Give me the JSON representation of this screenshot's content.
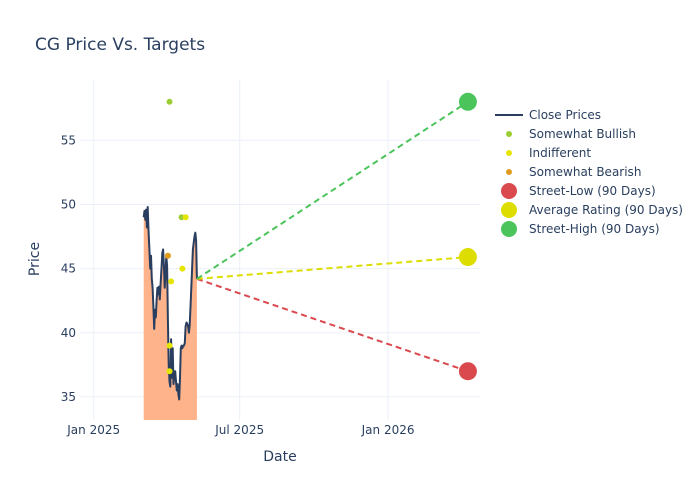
{
  "chart_data": {
    "type": "line",
    "title": "CG Price Vs. Targets",
    "xlabel": "Date",
    "ylabel": "Price",
    "x_range": [
      "2024-12-15",
      "2026-04-25"
    ],
    "y_range": [
      33.2,
      59.7
    ],
    "x_ticks": [
      {
        "date": "2025-01-01",
        "label": "Jan 2025"
      },
      {
        "date": "2025-07-01",
        "label": "Jul 2025"
      },
      {
        "date": "2026-01-01",
        "label": "Jan 2026"
      }
    ],
    "y_ticks": [
      35,
      40,
      45,
      50,
      55
    ],
    "grid": true,
    "legend_position": "top-right",
    "colors": {
      "close": "#2a3f5f",
      "fill": "#ffb38a",
      "somewhat_bullish": "#9acd32",
      "indifferent": "#e5e500",
      "somewhat_bearish": "#e09b20",
      "street_low": "#d9494d",
      "average": "#dddd00",
      "street_high": "#4cc45c"
    },
    "close_prices": [
      {
        "date": "2025-03-04",
        "value": 49.0
      },
      {
        "date": "2025-03-05",
        "value": 49.5
      },
      {
        "date": "2025-03-06",
        "value": 48.8
      },
      {
        "date": "2025-03-07",
        "value": 49.6
      },
      {
        "date": "2025-03-08",
        "value": 48.2
      },
      {
        "date": "2025-03-09",
        "value": 49.8
      },
      {
        "date": "2025-03-10",
        "value": 48.0
      },
      {
        "date": "2025-03-11",
        "value": 46.5
      },
      {
        "date": "2025-03-12",
        "value": 45.0
      },
      {
        "date": "2025-03-13",
        "value": 46.0
      },
      {
        "date": "2025-03-14",
        "value": 44.2
      },
      {
        "date": "2025-03-15",
        "value": 43.5
      },
      {
        "date": "2025-03-16",
        "value": 42.0
      },
      {
        "date": "2025-03-17",
        "value": 40.3
      },
      {
        "date": "2025-03-18",
        "value": 41.8
      },
      {
        "date": "2025-03-19",
        "value": 41.2
      },
      {
        "date": "2025-03-20",
        "value": 42.5
      },
      {
        "date": "2025-03-21",
        "value": 43.5
      },
      {
        "date": "2025-03-22",
        "value": 43.0
      },
      {
        "date": "2025-03-23",
        "value": 43.6
      },
      {
        "date": "2025-03-24",
        "value": 42.6
      },
      {
        "date": "2025-03-25",
        "value": 43.8
      },
      {
        "date": "2025-03-26",
        "value": 45.0
      },
      {
        "date": "2025-03-27",
        "value": 46.2
      },
      {
        "date": "2025-03-28",
        "value": 46.5
      },
      {
        "date": "2025-03-29",
        "value": 45.2
      },
      {
        "date": "2025-03-30",
        "value": 43.5
      },
      {
        "date": "2025-03-31",
        "value": 44.5
      },
      {
        "date": "2025-04-01",
        "value": 46.0
      },
      {
        "date": "2025-04-02",
        "value": 45.2
      },
      {
        "date": "2025-04-03",
        "value": 41.0
      },
      {
        "date": "2025-04-04",
        "value": 37.5
      },
      {
        "date": "2025-04-05",
        "value": 36.2
      },
      {
        "date": "2025-04-06",
        "value": 35.8
      },
      {
        "date": "2025-04-07",
        "value": 39.5
      },
      {
        "date": "2025-04-08",
        "value": 36.5
      },
      {
        "date": "2025-04-09",
        "value": 38.8
      },
      {
        "date": "2025-04-10",
        "value": 36.0
      },
      {
        "date": "2025-04-11",
        "value": 36.8
      },
      {
        "date": "2025-04-12",
        "value": 37.0
      },
      {
        "date": "2025-04-13",
        "value": 36.2
      },
      {
        "date": "2025-04-14",
        "value": 35.5
      },
      {
        "date": "2025-04-15",
        "value": 36.0
      },
      {
        "date": "2025-04-16",
        "value": 35.2
      },
      {
        "date": "2025-04-17",
        "value": 34.8
      },
      {
        "date": "2025-04-18",
        "value": 36.5
      },
      {
        "date": "2025-04-19",
        "value": 38.8
      },
      {
        "date": "2025-04-20",
        "value": 39.0
      },
      {
        "date": "2025-04-21",
        "value": 38.8
      },
      {
        "date": "2025-04-22",
        "value": 39.0
      },
      {
        "date": "2025-04-23",
        "value": 39.0
      },
      {
        "date": "2025-04-24",
        "value": 39.2
      },
      {
        "date": "2025-04-25",
        "value": 40.5
      },
      {
        "date": "2025-04-26",
        "value": 40.8
      },
      {
        "date": "2025-04-27",
        "value": 40.7
      },
      {
        "date": "2025-04-28",
        "value": 40.5
      },
      {
        "date": "2025-04-29",
        "value": 40.0
      },
      {
        "date": "2025-04-30",
        "value": 40.6
      },
      {
        "date": "2025-05-01",
        "value": 42.0
      },
      {
        "date": "2025-05-02",
        "value": 43.5
      },
      {
        "date": "2025-05-03",
        "value": 45.0
      },
      {
        "date": "2025-05-04",
        "value": 46.5
      },
      {
        "date": "2025-05-05",
        "value": 47.0
      },
      {
        "date": "2025-05-06",
        "value": 47.5
      },
      {
        "date": "2025-05-07",
        "value": 47.8
      },
      {
        "date": "2025-05-08",
        "value": 47.2
      },
      {
        "date": "2025-05-09",
        "value": 44.2
      }
    ],
    "series": [
      {
        "name": "Somewhat Bullish",
        "points": [
          {
            "date": "2025-04-05",
            "value": 58.0
          },
          {
            "date": "2025-04-20",
            "value": 49.0
          }
        ]
      },
      {
        "name": "Indifferent",
        "points": [
          {
            "date": "2025-04-07",
            "value": 44.0
          },
          {
            "date": "2025-04-03",
            "value": 46.0
          },
          {
            "date": "2025-04-05",
            "value": 39.0
          },
          {
            "date": "2025-04-05",
            "value": 37.0
          },
          {
            "date": "2025-04-21",
            "value": 45.0
          },
          {
            "date": "2025-04-25",
            "value": 49.0
          }
        ]
      },
      {
        "name": "Somewhat Bearish",
        "points": [
          {
            "date": "2025-04-03",
            "value": 46.0
          }
        ]
      }
    ],
    "targets": [
      {
        "name": "Street-Low (90 Days)",
        "value": 37.0,
        "date": "2026-04-10"
      },
      {
        "name": "Average Rating (90 Days)",
        "value": 45.9,
        "date": "2026-04-10"
      },
      {
        "name": "Street-High (90 Days)",
        "value": 58.0,
        "date": "2026-04-10"
      }
    ],
    "target_start": {
      "date": "2025-05-09",
      "value": 44.2
    },
    "legend": [
      {
        "label": "Close Prices",
        "kind": "line",
        "color": "#2a3f5f"
      },
      {
        "label": "Somewhat Bullish",
        "kind": "dot",
        "color": "#9acd32"
      },
      {
        "label": "Indifferent",
        "kind": "dot",
        "color": "#e5e500"
      },
      {
        "label": "Somewhat Bearish",
        "kind": "dot",
        "color": "#e09b20"
      },
      {
        "label": "Street-Low (90 Days)",
        "kind": "marker",
        "color": "#d9494d"
      },
      {
        "label": "Average Rating (90 Days)",
        "kind": "marker",
        "color": "#dddd00"
      },
      {
        "label": "Street-High (90 Days)",
        "kind": "marker",
        "color": "#4cc45c"
      }
    ]
  }
}
